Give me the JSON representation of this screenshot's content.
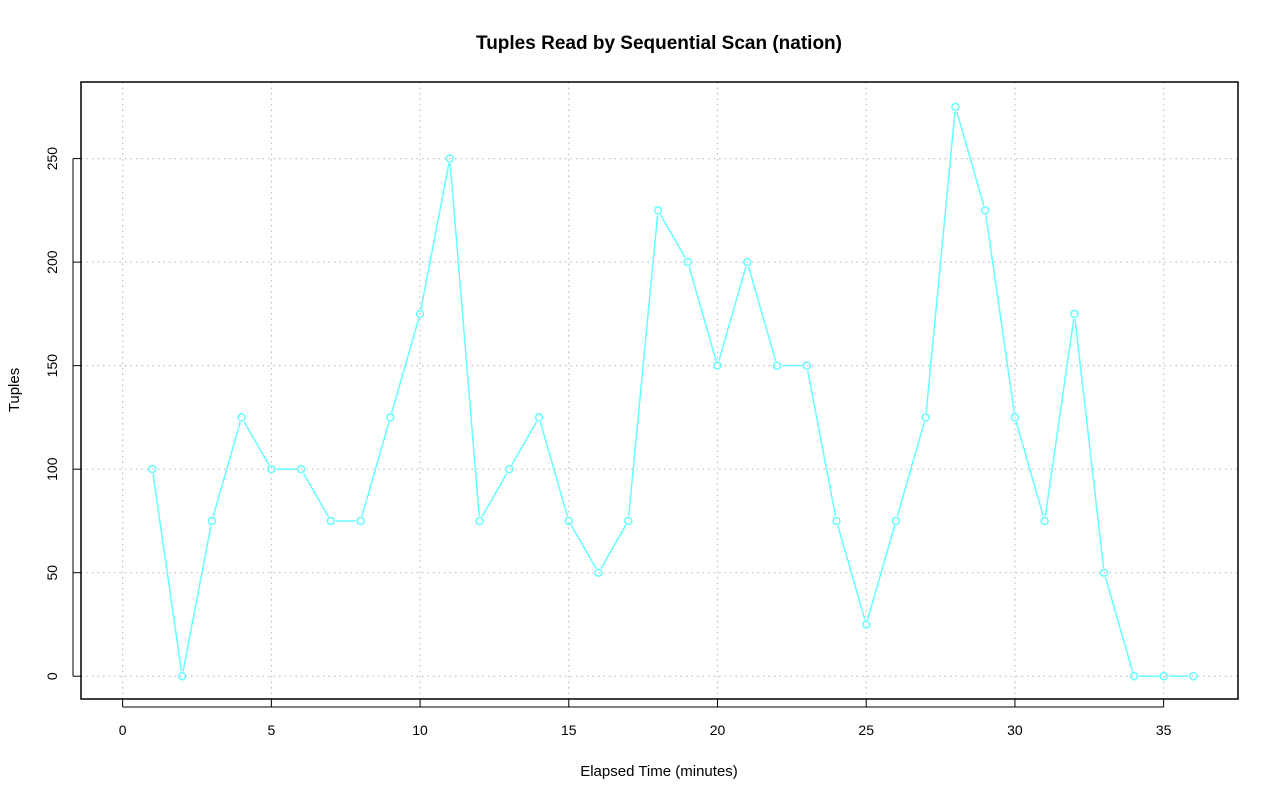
{
  "chart_data": {
    "type": "line",
    "title": "Tuples Read by Sequential Scan (nation)",
    "xlabel": "Elapsed Time (minutes)",
    "ylabel": "Tuples",
    "xlim": [
      -1.4,
      37.5
    ],
    "ylim": [
      -11,
      287
    ],
    "x_ticks": [
      0,
      5,
      10,
      15,
      20,
      25,
      30,
      35
    ],
    "y_ticks": [
      0,
      50,
      100,
      150,
      200,
      250
    ],
    "x_tick_labels": [
      "0",
      "5",
      "10",
      "15",
      "20",
      "25",
      "30",
      "35"
    ],
    "y_tick_labels": [
      "0",
      "50",
      "100",
      "150",
      "200",
      "250"
    ],
    "grid": true,
    "grid_style": "dotted",
    "legend": "none",
    "series": [
      {
        "color": "#66ffff",
        "marker": "open-circle",
        "x": [
          1,
          2,
          3,
          4,
          5,
          6,
          7,
          8,
          9,
          10,
          11,
          12,
          13,
          14,
          15,
          16,
          17,
          18,
          19,
          20,
          21,
          22,
          23,
          24,
          25,
          26,
          27,
          28,
          29,
          30,
          31,
          32,
          33,
          34,
          35,
          36
        ],
        "values": [
          100,
          0,
          75,
          125,
          100,
          100,
          75,
          75,
          125,
          175,
          250,
          75,
          100,
          125,
          75,
          50,
          75,
          225,
          200,
          150,
          200,
          150,
          150,
          75,
          25,
          75,
          125,
          275,
          225,
          125,
          75,
          175,
          50,
          0,
          0,
          0
        ]
      }
    ]
  }
}
